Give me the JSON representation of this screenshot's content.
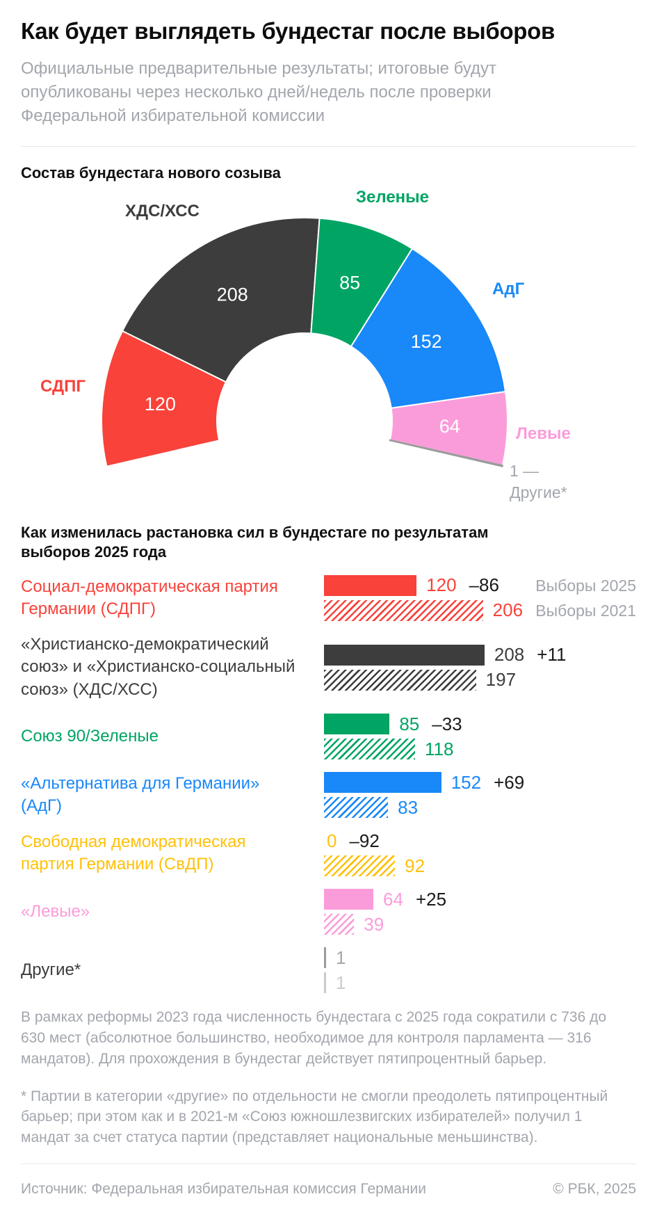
{
  "header": {
    "title": "Как будет выглядеть бундестаг после выборов",
    "subtitle": "Официальные предварительные результаты; итоговые будут опубликованы через несколько дней/недель после проверки Федеральной избирательной комиссии"
  },
  "colors": {
    "text": "#1A1A1A",
    "muted": "#A2A6AD",
    "divider": "#E8E8E8",
    "value_label": "#FFFFFF",
    "sdpg": "#F8423A",
    "cducsu": "#3D3D3D",
    "greens": "#00A463",
    "afd": "#1988F8",
    "fdp": "#FFC10A",
    "left": "#FB9CDA",
    "others": "#9B9B9B",
    "others_light": "#C9CBCF",
    "label_dark": "#3C3C3C"
  },
  "chart_data": [
    {
      "type": "pie",
      "variant": "half_donut_parliament",
      "title": "Состав бундестага нового созыва",
      "total": 630,
      "segments": [
        {
          "party": "СДПГ",
          "value": 120,
          "color_key": "sdpg"
        },
        {
          "party": "ХДС/ХСС",
          "value": 208,
          "color_key": "cducsu"
        },
        {
          "party": "Зеленые",
          "value": 85,
          "color_key": "greens"
        },
        {
          "party": "АдГ",
          "value": 152,
          "color_key": "afd"
        },
        {
          "party": "Левые",
          "value": 64,
          "color_key": "left"
        },
        {
          "party": "Другие*",
          "value": 1,
          "color_key": "others",
          "callout": "1 —"
        }
      ]
    },
    {
      "type": "bar",
      "title": "Как изменилась растановка сил в бундестаге по результатам выборов 2025 года",
      "legend": [
        "Выборы 2025",
        "Выборы 2021"
      ],
      "series_years": [
        "2025",
        "2021"
      ],
      "rows": [
        {
          "label": "Социал-демократическая партия Германии (СДПГ)",
          "color_key": "sdpg",
          "value_2025": 120,
          "delta": "–86",
          "value_2021": 206
        },
        {
          "label": "«Христианско-демократический союз» и «Христианско-социальный союз» (ХДС/ХСС)",
          "color_key": "cducsu",
          "value_2025": 208,
          "delta": "+11",
          "value_2021": 197
        },
        {
          "label": "Союз 90/Зеленые",
          "color_key": "greens",
          "value_2025": 85,
          "delta": "–33",
          "value_2021": 118
        },
        {
          "label": "«Альтернатива для Германии» (АдГ)",
          "color_key": "afd",
          "value_2025": 152,
          "delta": "+69",
          "value_2021": 83
        },
        {
          "label": "Свободная демократическая партия Германии (СвДП)",
          "color_key": "fdp",
          "value_2025": 0,
          "delta": "–92",
          "value_2021": 92
        },
        {
          "label": "«Левые»",
          "color_key": "left",
          "value_2025": 64,
          "delta": "+25",
          "value_2021": 39
        },
        {
          "label": "Другие*",
          "color_key": "others",
          "label_dark": true,
          "muted_values": true,
          "value_2025": 1,
          "delta": "",
          "value_2021": 1
        }
      ]
    }
  ],
  "footnotes": [
    "В рамках реформы 2023 года численность бундестага с 2025 года сократили с 736 до 630 мест (абсолютное большинство, необходимое для контроля парламента — 316 мандатов). Для прохождения в бундестаг действует пятипроцентный барьер.",
    "* Партии в категории «другие» по отдельности не смогли преодолеть пятипроцентный барьер; при этом как и в 2021-м «Союз южношлезвигских избирателей» получил 1 мандат за счет статуса партии (представляет национальные меньшинства)."
  ],
  "source": {
    "label": "Источник: Федеральная избирательная комиссия Германии",
    "copyright": "© РБК, 2025"
  }
}
